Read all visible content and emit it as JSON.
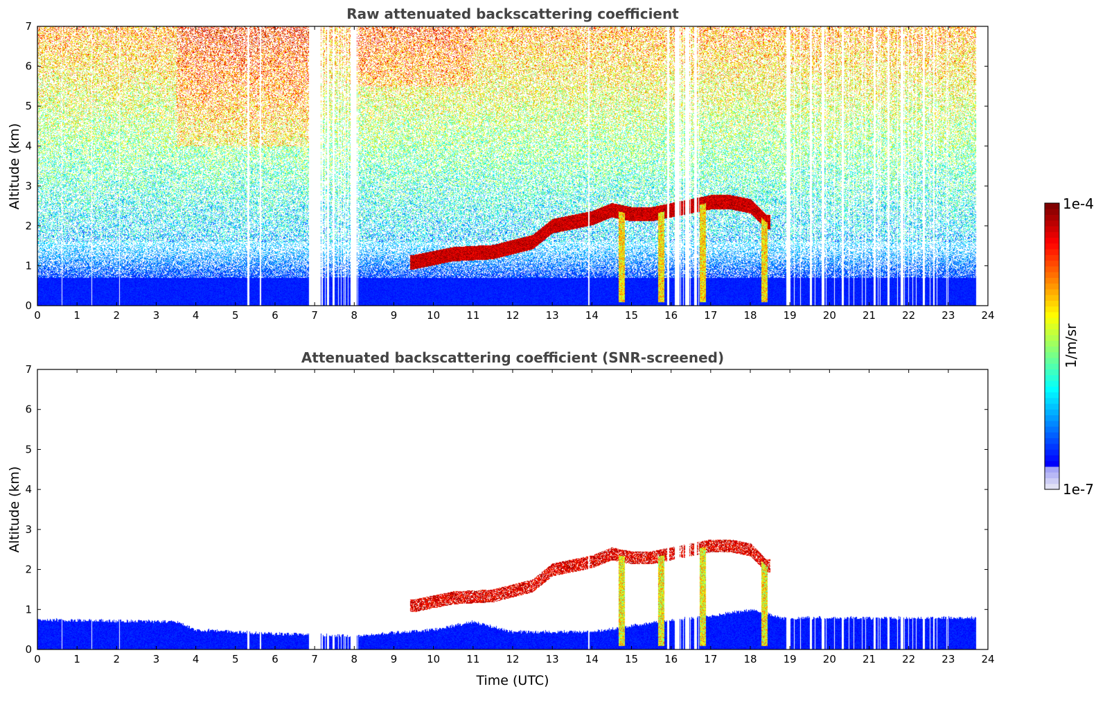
{
  "chart_data": [
    {
      "type": "heatmap",
      "id": "raw",
      "title": "Raw attenuated backscattering coefficient",
      "xlabel": "",
      "ylabel": "Altitude (km)",
      "xlim": [
        0,
        24
      ],
      "ylim": [
        0,
        7
      ],
      "x_ticks": [
        0,
        1,
        2,
        3,
        4,
        5,
        6,
        7,
        8,
        9,
        10,
        11,
        12,
        13,
        14,
        15,
        16,
        17,
        18,
        19,
        20,
        21,
        22,
        23,
        24
      ],
      "y_ticks": [
        0,
        1,
        2,
        3,
        4,
        5,
        6,
        7
      ],
      "data_end_time": 23.7,
      "boundary_layer_top_km": 0.7,
      "cloud_layer": [
        {
          "t": 9.5,
          "z": 1.1
        },
        {
          "t": 10.5,
          "z": 1.3
        },
        {
          "t": 11.5,
          "z": 1.35
        },
        {
          "t": 12.5,
          "z": 1.6
        },
        {
          "t": 13.0,
          "z": 2.0
        },
        {
          "t": 13.5,
          "z": 2.1
        },
        {
          "t": 14.0,
          "z": 2.2
        },
        {
          "t": 14.5,
          "z": 2.4
        },
        {
          "t": 15.0,
          "z": 2.3
        },
        {
          "t": 15.5,
          "z": 2.3
        },
        {
          "t": 16.0,
          "z": 2.4
        },
        {
          "t": 16.5,
          "z": 2.5
        },
        {
          "t": 17.0,
          "z": 2.6
        },
        {
          "t": 17.5,
          "z": 2.6
        },
        {
          "t": 18.0,
          "z": 2.5
        },
        {
          "t": 18.4,
          "z": 2.1
        }
      ]
    },
    {
      "type": "heatmap",
      "id": "snr",
      "title": "Attenuated backscattering coefficient (SNR-screened)",
      "xlabel": "Time (UTC)",
      "ylabel": "Altitude (km)",
      "xlim": [
        0,
        24
      ],
      "ylim": [
        0,
        7
      ],
      "x_ticks": [
        0,
        1,
        2,
        3,
        4,
        5,
        6,
        7,
        8,
        9,
        10,
        11,
        12,
        13,
        14,
        15,
        16,
        17,
        18,
        19,
        20,
        21,
        22,
        23,
        24
      ],
      "y_ticks": [
        0,
        1,
        2,
        3,
        4,
        5,
        6,
        7
      ],
      "data_end_time": 23.7,
      "boundary_layer_top": [
        {
          "t": 0,
          "z": 0.75
        },
        {
          "t": 3.5,
          "z": 0.7
        },
        {
          "t": 4,
          "z": 0.5
        },
        {
          "t": 6,
          "z": 0.4
        },
        {
          "t": 8,
          "z": 0.35
        },
        {
          "t": 10,
          "z": 0.5
        },
        {
          "t": 11,
          "z": 0.7
        },
        {
          "t": 12,
          "z": 0.45
        },
        {
          "t": 14,
          "z": 0.45
        },
        {
          "t": 15,
          "z": 0.6
        },
        {
          "t": 16,
          "z": 0.75
        },
        {
          "t": 17,
          "z": 0.85
        },
        {
          "t": 18,
          "z": 1.0
        },
        {
          "t": 18.8,
          "z": 0.8
        },
        {
          "t": 23.7,
          "z": 0.8
        }
      ]
    }
  ],
  "colorbar": {
    "label": "1/m/sr",
    "min_label": "1e-7",
    "max_label": "1e-4",
    "scale": "log",
    "colormap": "jet"
  }
}
